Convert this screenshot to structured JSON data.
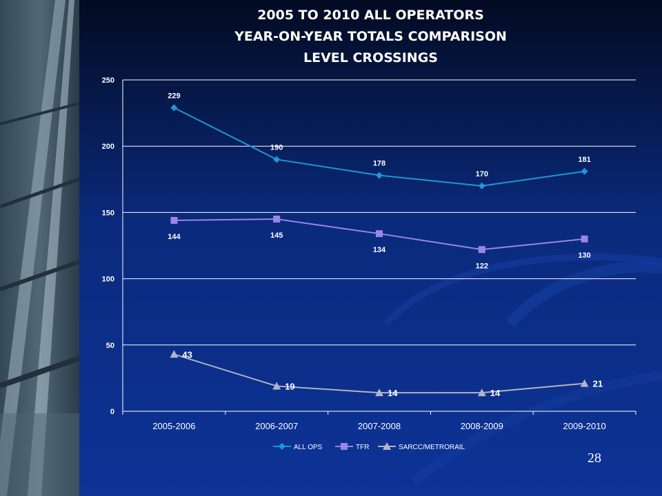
{
  "slide": {
    "title_lines": [
      "2005 TO 2010 ALL OPERATORS",
      "YEAR-ON-YEAR TOTALS COMPARISON",
      "LEVEL CROSSINGS"
    ],
    "page_number": "28"
  },
  "colors": {
    "background_top": "#030b22",
    "background_bottom": "#0d3397",
    "all_ops": "#1f97d6",
    "tfr": "#9a86e6",
    "sarcc": "#b4b4c8",
    "text": "#ffffff"
  },
  "chart_data": {
    "type": "line",
    "categories": [
      "2005-2006",
      "2006-2007",
      "2007-2008",
      "2008-2009",
      "2009-2010"
    ],
    "ylim": [
      0,
      250
    ],
    "yticks": [
      0,
      50,
      100,
      150,
      200,
      250
    ],
    "grid": true,
    "legend_position": "bottom",
    "series": [
      {
        "name": "ALL OPS",
        "marker": "diamond",
        "values": [
          229,
          190,
          178,
          170,
          181
        ],
        "labels": [
          "229",
          "190",
          "178",
          "170",
          "181"
        ]
      },
      {
        "name": "TFR",
        "marker": "square",
        "values": [
          144,
          145,
          134,
          122,
          130
        ],
        "labels": [
          "144",
          "145",
          "134",
          "122",
          "130"
        ]
      },
      {
        "name": "SARCC/METRORAIL",
        "marker": "triangle",
        "values": [
          43,
          19,
          14,
          14,
          21
        ],
        "labels": [
          "43",
          "19",
          "14",
          "14",
          "21"
        ]
      }
    ]
  }
}
